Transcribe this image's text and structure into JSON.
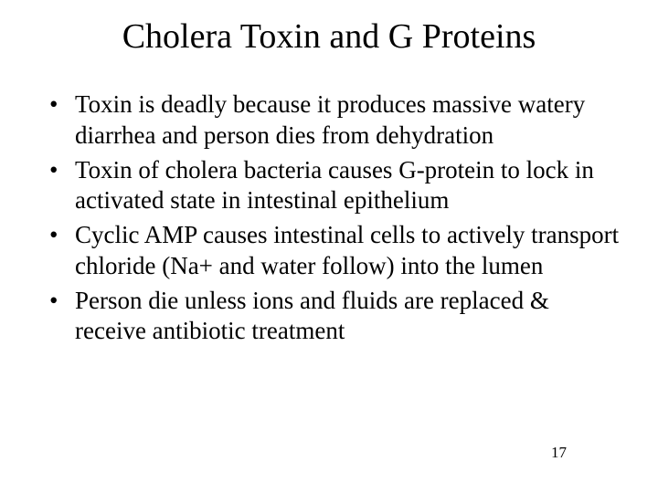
{
  "title": "Cholera Toxin and G Proteins",
  "bullets": [
    "Toxin is deadly because it produces massive watery diarrhea and person dies from dehydration",
    "Toxin of cholera bacteria causes G-protein to lock in activated state in intestinal epithelium",
    "Cyclic AMP causes intestinal cells to actively transport chloride (Na+ and water follow) into the lumen",
    "Person die unless ions and fluids are replaced & receive antibiotic treatment"
  ],
  "page_number": "17",
  "colors": {
    "background": "#ffffff",
    "text": "#000000"
  },
  "typography": {
    "title_fontsize": 38,
    "body_fontsize": 27,
    "page_number_fontsize": 17,
    "font_family": "Times New Roman"
  }
}
